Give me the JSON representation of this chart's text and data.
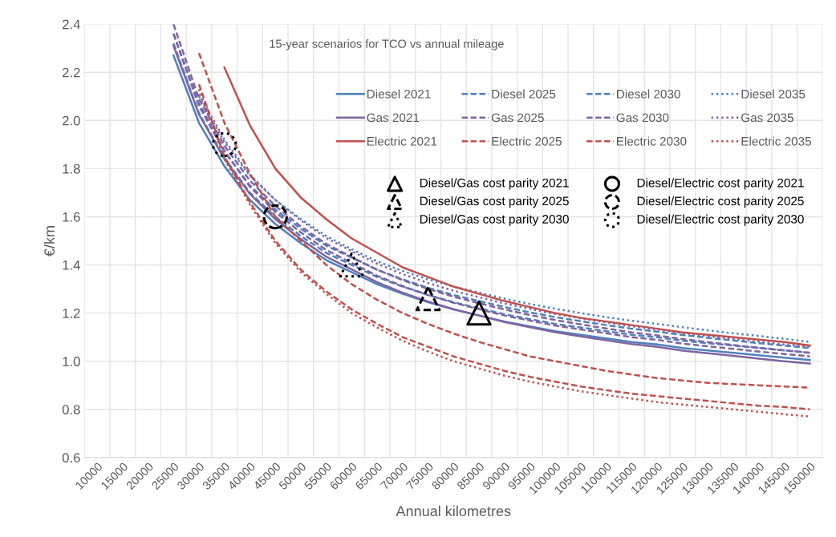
{
  "chart_data": {
    "type": "line",
    "title": "15-year scenarios for TCO vs annual mileage",
    "xlabel": "Annual kilometres",
    "ylabel": "€/km",
    "categories": [
      "10000",
      "15000",
      "20000",
      "25000",
      "30000",
      "35000",
      "40000",
      "45000",
      "50000",
      "55000",
      "60000",
      "65000",
      "70000",
      "75000",
      "80000",
      "85000",
      "90000",
      "95000",
      "100000",
      "105000",
      "110000",
      "115000",
      "120000",
      "125000",
      "130000",
      "135000",
      "140000",
      "145000",
      "150000"
    ],
    "ylim": [
      0.6,
      2.4
    ],
    "yticks": [
      0.6,
      0.8,
      {
        "value": 1,
        "label": "1.0"
      },
      1.2,
      1.4,
      1.6,
      1.8,
      {
        "value": 2,
        "label": "2.0"
      },
      2.2,
      2.4
    ],
    "grid": true,
    "legend": "top right",
    "series": [
      {
        "name": "Diesel 2021",
        "color": "#4f81bd",
        "line_style": "solid",
        "values": [
          null,
          null,
          null,
          2.27,
          1.99,
          1.81,
          1.67,
          1.57,
          1.49,
          1.42,
          1.37,
          1.32,
          1.28,
          1.245,
          1.215,
          1.19,
          1.165,
          1.145,
          1.125,
          1.11,
          1.095,
          1.08,
          1.07,
          1.055,
          1.045,
          1.035,
          1.025,
          1.015,
          1.005
        ]
      },
      {
        "name": "Diesel 2025",
        "color": "#4f81bd",
        "line_style": "dashed",
        "values": [
          null,
          null,
          null,
          2.32,
          2.03,
          1.845,
          1.7,
          1.6,
          1.52,
          1.45,
          1.4,
          1.35,
          1.31,
          1.275,
          1.245,
          1.22,
          1.195,
          1.175,
          1.155,
          1.14,
          1.125,
          1.11,
          1.1,
          1.085,
          1.075,
          1.065,
          1.055,
          1.045,
          1.035
        ]
      },
      {
        "name": "Diesel 2030",
        "color": "#4f81bd",
        "line_style": "dashed",
        "values": [
          null,
          null,
          null,
          2.36,
          2.06,
          1.87,
          1.73,
          1.63,
          1.55,
          1.48,
          1.43,
          1.38,
          1.34,
          1.305,
          1.275,
          1.25,
          1.225,
          1.203,
          1.183,
          1.166,
          1.15,
          1.135,
          1.123,
          1.109,
          1.097,
          1.086,
          1.075,
          1.065,
          1.055
        ]
      },
      {
        "name": "Diesel 2035",
        "color": "#4f81bd",
        "line_style": "dotted",
        "values": [
          null,
          null,
          null,
          null,
          2.1,
          1.91,
          1.77,
          1.67,
          1.59,
          1.52,
          1.465,
          1.415,
          1.375,
          1.34,
          1.31,
          1.285,
          1.26,
          1.238,
          1.218,
          1.2,
          1.183,
          1.168,
          1.155,
          1.141,
          1.128,
          1.116,
          1.105,
          1.093,
          1.08
        ]
      },
      {
        "name": "Gas 2021",
        "color": "#8064a2",
        "line_style": "solid",
        "values": [
          null,
          null,
          null,
          2.31,
          2.025,
          1.84,
          1.695,
          1.59,
          1.507,
          1.434,
          1.381,
          1.328,
          1.285,
          1.248,
          1.216,
          1.19,
          1.163,
          1.141,
          1.12,
          1.103,
          1.087,
          1.071,
          1.06,
          1.044,
          1.033,
          1.022,
          1.011,
          1.0,
          0.99
        ]
      },
      {
        "name": "Gas 2025",
        "color": "#8064a2",
        "line_style": "dashed",
        "values": [
          null,
          null,
          null,
          2.36,
          2.07,
          1.875,
          1.725,
          1.62,
          1.535,
          1.462,
          1.408,
          1.355,
          1.312,
          1.275,
          1.243,
          1.216,
          1.19,
          1.169,
          1.148,
          1.132,
          1.116,
          1.1,
          1.089,
          1.073,
          1.062,
          1.051,
          1.04,
          1.03,
          1.02
        ]
      },
      {
        "name": "Gas 2030",
        "color": "#8064a2",
        "line_style": "dashed",
        "values": [
          null,
          null,
          null,
          2.4,
          2.09,
          1.895,
          1.75,
          1.645,
          1.56,
          1.487,
          1.433,
          1.38,
          1.337,
          1.3,
          1.268,
          1.241,
          1.215,
          1.192,
          1.171,
          1.153,
          1.136,
          1.12,
          1.107,
          1.092,
          1.079,
          1.067,
          1.056,
          1.045,
          1.035
        ]
      },
      {
        "name": "Gas 2035",
        "color": "#8064a2",
        "line_style": "dotted",
        "values": [
          null,
          null,
          null,
          null,
          2.11,
          1.92,
          1.775,
          1.67,
          1.585,
          1.512,
          1.457,
          1.405,
          1.362,
          1.325,
          1.293,
          1.266,
          1.24,
          1.217,
          1.196,
          1.178,
          1.161,
          1.145,
          1.132,
          1.117,
          1.104,
          1.092,
          1.081,
          1.07,
          1.06
        ]
      },
      {
        "name": "Electric 2021",
        "color": "#c0504d",
        "line_style": "solid",
        "values": [
          null,
          null,
          null,
          null,
          null,
          2.22,
          1.98,
          1.8,
          1.68,
          1.59,
          1.51,
          1.45,
          1.39,
          1.35,
          1.31,
          1.28,
          1.25,
          1.225,
          1.2,
          1.18,
          1.165,
          1.15,
          1.135,
          1.12,
          1.11,
          1.1,
          1.09,
          1.08,
          1.065
        ]
      },
      {
        "name": "Electric 2025",
        "color": "#c0504d",
        "line_style": "dashed",
        "values": [
          null,
          null,
          null,
          null,
          2.28,
          1.99,
          1.78,
          1.6,
          1.5,
          1.4,
          1.32,
          1.255,
          1.2,
          1.155,
          1.115,
          1.08,
          1.05,
          1.02,
          1.0,
          0.98,
          0.96,
          0.945,
          0.93,
          0.92,
          0.91,
          0.905,
          0.9,
          0.895,
          0.89
        ]
      },
      {
        "name": "Electric 2030",
        "color": "#c0504d",
        "line_style": "dashed",
        "values": [
          null,
          null,
          null,
          null,
          2.15,
          1.85,
          1.66,
          1.5,
          1.38,
          1.29,
          1.215,
          1.155,
          1.1,
          1.06,
          1.02,
          0.99,
          0.96,
          0.935,
          0.915,
          0.895,
          0.88,
          0.865,
          0.855,
          0.845,
          0.835,
          0.825,
          0.815,
          0.81,
          0.8
        ]
      },
      {
        "name": "Electric 2035",
        "color": "#c0504d",
        "line_style": "dotted",
        "values": [
          null,
          null,
          null,
          null,
          2.13,
          1.84,
          1.65,
          1.49,
          1.37,
          1.28,
          1.2,
          1.14,
          1.085,
          1.04,
          1.0,
          0.97,
          0.94,
          0.915,
          0.895,
          0.875,
          0.86,
          0.845,
          0.83,
          0.82,
          0.81,
          0.8,
          0.79,
          0.78,
          0.77
        ]
      },
      {
        "name": "Diesel/Gas cost parity 2021",
        "type": "scatter",
        "marker": "triangle",
        "color": "#000000",
        "line_style": "solid",
        "x": [
          "85000"
        ],
        "values": [
          1.2
        ]
      },
      {
        "name": "Diesel/Gas cost parity 2025",
        "type": "scatter",
        "marker": "triangle",
        "color": "#000000",
        "line_style": "dashed",
        "x": [
          "75000"
        ],
        "values": [
          1.26
        ]
      },
      {
        "name": "Diesel/Gas cost parity 2030",
        "type": "scatter",
        "marker": "triangle",
        "color": "#000000",
        "line_style": "dotted",
        "x": [
          "60000"
        ],
        "values": [
          1.4
        ]
      },
      {
        "name": "Diesel/Electric cost parity 2021",
        "type": "scatter",
        "marker": "circle",
        "color": "#000000",
        "line_style": "solid",
        "x": [
          "150000"
        ],
        "values": [
          null
        ]
      },
      {
        "name": "Diesel/Electric cost parity 2025",
        "type": "scatter",
        "marker": "circle",
        "color": "#000000",
        "line_style": "dashed",
        "x": [
          "45000"
        ],
        "values": [
          1.6
        ]
      },
      {
        "name": "Diesel/Electric cost parity 2030",
        "type": "scatter",
        "marker": "circle",
        "color": "#000000",
        "line_style": "dotted",
        "x": [
          "35000"
        ],
        "values": [
          1.9
        ]
      }
    ]
  }
}
